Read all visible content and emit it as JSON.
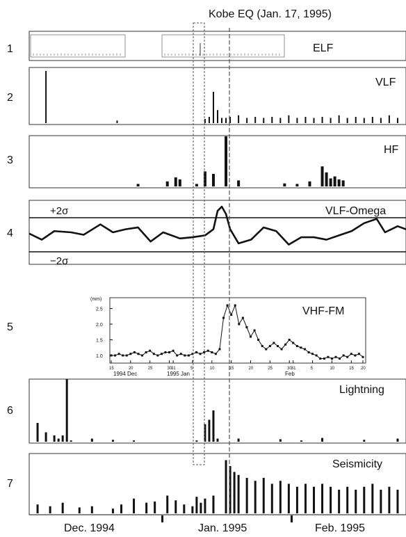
{
  "title": "Kobe EQ (Jan. 17, 1995)",
  "x_axis_labels": [
    "Dec. 1994",
    "Jan. 1995",
    "Feb. 1995"
  ],
  "panels": [
    {
      "num": "1",
      "label": "ELF"
    },
    {
      "num": "2",
      "label": "VLF"
    },
    {
      "num": "3",
      "label": "HF"
    },
    {
      "num": "4",
      "label": "VLF-Omega",
      "upper": "+2σ",
      "lower": "−2σ"
    },
    {
      "num": "5",
      "label": "VHF-FM"
    },
    {
      "num": "6",
      "label": "Lightning"
    },
    {
      "num": "7",
      "label": "Seismicity"
    }
  ],
  "inset": {
    "ylabel": "(mm)",
    "yticks": [
      "2.5",
      "2.0",
      "1.5",
      "1.0"
    ],
    "xticks": [
      "15",
      "20",
      "25",
      "30",
      "31",
      "5",
      "10",
      "15",
      "20",
      "25",
      "30",
      "31",
      "5",
      "10",
      "15",
      "20"
    ],
    "month_labels": [
      "1994 Dec",
      "1995 Jan",
      "Feb"
    ]
  },
  "chart_data": {
    "type": "bar",
    "x_range": [
      0,
      90
    ],
    "earthquake_day": 47,
    "highlight_window": [
      42,
      47
    ],
    "series": [
      {
        "name": "VLF",
        "values": [
          [
            4,
            1.0
          ],
          [
            21,
            0.05
          ],
          [
            42,
            0.08
          ],
          [
            43,
            0.12
          ],
          [
            44,
            0.6
          ],
          [
            45,
            0.25
          ],
          [
            46,
            0.1
          ],
          [
            47,
            0.1
          ],
          [
            48,
            0.12
          ],
          [
            50,
            0.15
          ],
          [
            52,
            0.1
          ],
          [
            54,
            0.12
          ],
          [
            56,
            0.1
          ],
          [
            58,
            0.12
          ],
          [
            60,
            0.1
          ],
          [
            62,
            0.15
          ],
          [
            64,
            0.1
          ],
          [
            66,
            0.12
          ],
          [
            68,
            0.1
          ],
          [
            70,
            0.12
          ],
          [
            72,
            0.1
          ],
          [
            74,
            0.15
          ],
          [
            76,
            0.1
          ],
          [
            78,
            0.12
          ],
          [
            80,
            0.1
          ],
          [
            82,
            0.12
          ],
          [
            84,
            0.1
          ],
          [
            86,
            0.15
          ],
          [
            88,
            0.1
          ]
        ]
      },
      {
        "name": "HF",
        "values": [
          [
            26,
            0.05
          ],
          [
            33,
            0.1
          ],
          [
            35,
            0.18
          ],
          [
            36,
            0.14
          ],
          [
            40,
            0.05
          ],
          [
            42,
            0.3
          ],
          [
            44,
            0.25
          ],
          [
            47,
            1.0
          ],
          [
            50,
            0.12
          ],
          [
            61,
            0.06
          ],
          [
            64,
            0.05
          ],
          [
            67,
            0.1
          ],
          [
            70,
            0.4
          ],
          [
            71,
            0.28
          ],
          [
            72,
            0.16
          ],
          [
            73,
            0.2
          ],
          [
            74,
            0.14
          ],
          [
            75,
            0.12
          ]
        ]
      },
      {
        "name": "VLF-Omega",
        "values": [
          [
            0,
            0.48
          ],
          [
            3,
            0.38
          ],
          [
            6,
            0.52
          ],
          [
            10,
            0.5
          ],
          [
            13,
            0.46
          ],
          [
            17,
            0.63
          ],
          [
            20,
            0.5
          ],
          [
            23,
            0.55
          ],
          [
            26,
            0.58
          ],
          [
            29,
            0.35
          ],
          [
            32,
            0.5
          ],
          [
            36,
            0.4
          ],
          [
            39,
            0.42
          ],
          [
            42,
            0.45
          ],
          [
            44,
            0.55
          ],
          [
            45,
            0.85
          ],
          [
            46,
            0.92
          ],
          [
            47,
            0.8
          ],
          [
            48,
            0.55
          ],
          [
            50,
            0.32
          ],
          [
            53,
            0.38
          ],
          [
            56,
            0.58
          ],
          [
            59,
            0.52
          ],
          [
            62,
            0.3
          ],
          [
            65,
            0.42
          ],
          [
            68,
            0.42
          ],
          [
            71,
            0.38
          ],
          [
            74,
            0.45
          ],
          [
            77,
            0.52
          ],
          [
            80,
            0.65
          ],
          [
            83,
            0.72
          ],
          [
            85,
            0.5
          ],
          [
            88,
            0.6
          ],
          [
            90,
            0.55
          ]
        ]
      },
      {
        "name": "VHF-FM",
        "values": [
          [
            15,
            1.0
          ],
          [
            16,
            1.0
          ],
          [
            17,
            1.05
          ],
          [
            18,
            1.0
          ],
          [
            19,
            1.0
          ],
          [
            20,
            1.05
          ],
          [
            21,
            1.1
          ],
          [
            22,
            1.05
          ],
          [
            23,
            1.0
          ],
          [
            24,
            1.1
          ],
          [
            25,
            1.15
          ],
          [
            26,
            1.05
          ],
          [
            27,
            1.0
          ],
          [
            28,
            1.05
          ],
          [
            29,
            1.1
          ],
          [
            30,
            1.1
          ],
          [
            31,
            1.15
          ],
          [
            32,
            1.0
          ],
          [
            33,
            1.05
          ],
          [
            34,
            1.0
          ],
          [
            35,
            1.0
          ],
          [
            36,
            1.05
          ],
          [
            37,
            1.1
          ],
          [
            38,
            1.05
          ],
          [
            39,
            1.1
          ],
          [
            40,
            1.15
          ],
          [
            41,
            1.1
          ],
          [
            42,
            1.05
          ],
          [
            43,
            1.2
          ],
          [
            44,
            2.2
          ],
          [
            45,
            2.6
          ],
          [
            46,
            2.3
          ],
          [
            47,
            2.6
          ],
          [
            48,
            2.0
          ],
          [
            49,
            2.2
          ],
          [
            50,
            1.9
          ],
          [
            51,
            1.6
          ],
          [
            52,
            1.8
          ],
          [
            53,
            1.5
          ],
          [
            54,
            1.3
          ],
          [
            55,
            1.2
          ],
          [
            56,
            1.3
          ],
          [
            57,
            1.4
          ],
          [
            58,
            1.3
          ],
          [
            59,
            1.2
          ],
          [
            60,
            1.35
          ],
          [
            61,
            1.5
          ],
          [
            62,
            1.4
          ],
          [
            63,
            1.3
          ],
          [
            64,
            1.25
          ],
          [
            65,
            1.2
          ],
          [
            66,
            1.1
          ],
          [
            67,
            1.05
          ],
          [
            68,
            1.0
          ],
          [
            69,
            0.9
          ],
          [
            70,
            0.9
          ],
          [
            71,
            0.95
          ],
          [
            72,
            0.9
          ],
          [
            73,
            0.95
          ],
          [
            74,
            0.9
          ],
          [
            75,
            1.0
          ],
          [
            76,
            0.95
          ],
          [
            77,
            1.05
          ],
          [
            78,
            1.0
          ],
          [
            79,
            1.05
          ],
          [
            80,
            0.95
          ]
        ]
      },
      {
        "name": "Lightning",
        "values": [
          [
            2,
            0.3
          ],
          [
            4,
            0.15
          ],
          [
            6,
            0.1
          ],
          [
            7,
            0.05
          ],
          [
            8,
            0.1
          ],
          [
            9,
            1.0
          ],
          [
            10,
            0.02
          ],
          [
            15,
            0.05
          ],
          [
            20,
            0.03
          ],
          [
            25,
            0.02
          ],
          [
            40,
            0.02
          ],
          [
            42,
            0.28
          ],
          [
            43,
            0.35
          ],
          [
            44,
            0.5
          ],
          [
            45,
            0.05
          ],
          [
            50,
            0.05
          ],
          [
            60,
            0.04
          ],
          [
            65,
            0.02
          ],
          [
            70,
            0.06
          ],
          [
            80,
            0.03
          ],
          [
            88,
            0.05
          ]
        ]
      },
      {
        "name": "Seismicity",
        "values": [
          [
            2,
            0.15
          ],
          [
            5,
            0.12
          ],
          [
            8,
            0.18
          ],
          [
            12,
            0.1
          ],
          [
            15,
            0.12
          ],
          [
            20,
            0.08
          ],
          [
            22,
            0.15
          ],
          [
            25,
            0.25
          ],
          [
            28,
            0.18
          ],
          [
            30,
            0.2
          ],
          [
            33,
            0.3
          ],
          [
            35,
            0.22
          ],
          [
            37,
            0.15
          ],
          [
            39,
            0.12
          ],
          [
            40,
            0.28
          ],
          [
            41,
            0.18
          ],
          [
            42,
            0.25
          ],
          [
            44,
            0.3
          ],
          [
            47,
            0.9
          ],
          [
            48,
            0.8
          ],
          [
            49,
            0.7
          ],
          [
            50,
            0.65
          ],
          [
            52,
            0.6
          ],
          [
            54,
            0.55
          ],
          [
            56,
            0.6
          ],
          [
            58,
            0.5
          ],
          [
            60,
            0.55
          ],
          [
            62,
            0.5
          ],
          [
            64,
            0.45
          ],
          [
            66,
            0.5
          ],
          [
            68,
            0.45
          ],
          [
            70,
            0.5
          ],
          [
            72,
            0.45
          ],
          [
            74,
            0.4
          ],
          [
            76,
            0.45
          ],
          [
            78,
            0.4
          ],
          [
            80,
            0.45
          ],
          [
            82,
            0.5
          ],
          [
            84,
            0.4
          ],
          [
            86,
            0.45
          ],
          [
            88,
            0.4
          ]
        ]
      }
    ]
  }
}
